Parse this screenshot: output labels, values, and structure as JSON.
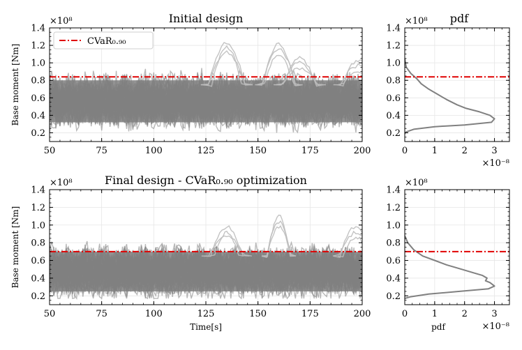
{
  "figure": {
    "panels": [
      {
        "id": "top-series",
        "title": "Initial design",
        "ylabel": "Base moment [Nm]",
        "exponent": "×10⁸",
        "xticks": [
          "50",
          "75",
          "100",
          "125",
          "150",
          "175",
          "200"
        ],
        "yticks": [
          "0.2",
          "0.4",
          "0.6",
          "0.8",
          "1.0",
          "1.2",
          "1.4"
        ]
      },
      {
        "id": "top-pdf",
        "title": "pdf",
        "exponent": "×10⁸",
        "xexponent": "×10⁻⁸",
        "xticks": [
          "0",
          "1",
          "2",
          "3"
        ],
        "yticks": [
          "0.2",
          "0.4",
          "0.6",
          "0.8",
          "1.0",
          "1.2",
          "1.4"
        ]
      },
      {
        "id": "bottom-series",
        "title": "Final design - CVaR₀.₉₀ optimization",
        "ylabel": "Base moment [Nm]",
        "xlabel": "Time[s]",
        "exponent": "×10⁸",
        "xticks": [
          "50",
          "75",
          "100",
          "125",
          "150",
          "175",
          "200"
        ],
        "yticks": [
          "0.2",
          "0.4",
          "0.6",
          "0.8",
          "1.0",
          "1.2",
          "1.4"
        ]
      },
      {
        "id": "bottom-pdf",
        "xlabel": "pdf",
        "exponent": "×10⁸",
        "xexponent": "×10⁻⁸",
        "xticks": [
          "0",
          "1",
          "2",
          "3"
        ],
        "yticks": [
          "0.2",
          "0.4",
          "0.6",
          "0.8",
          "1.0",
          "1.2",
          "1.4"
        ]
      }
    ],
    "legend": {
      "label": "CVaR₀.₉₀"
    }
  },
  "chart_data": [
    {
      "type": "line",
      "title": "Initial design",
      "xlabel": "",
      "ylabel": "Base moment [Nm]",
      "xlim": [
        50,
        200
      ],
      "ylim": [
        0.1,
        1.4
      ],
      "y_scale": "1e8",
      "series": [
        {
          "name": "sample trajectories (band)",
          "y_low": 0.2,
          "y_core_low": 0.32,
          "y_core_high": 0.8,
          "y_high": 1.05
        },
        {
          "name": "CVaR₀.₉₀",
          "y": 0.84
        }
      ],
      "peaks": [
        {
          "x": 135,
          "y": 1.25
        },
        {
          "x": 160,
          "y": 1.23
        },
        {
          "x": 170,
          "y": 1.08
        },
        {
          "x": 198,
          "y": 1.05
        }
      ]
    },
    {
      "type": "line",
      "title": "pdf",
      "xlim": [
        0,
        3.5
      ],
      "ylim": [
        0.1,
        1.4
      ],
      "x_scale": "1e-8",
      "y_scale": "1e8",
      "series": [
        {
          "name": "pdf",
          "points": [
            [
              0.0,
              1.05
            ],
            [
              0.05,
              0.95
            ],
            [
              0.2,
              0.88
            ],
            [
              0.4,
              0.82
            ],
            [
              0.55,
              0.76
            ],
            [
              0.8,
              0.7
            ],
            [
              1.1,
              0.64
            ],
            [
              1.4,
              0.58
            ],
            [
              1.75,
              0.52
            ],
            [
              2.05,
              0.48
            ],
            [
              2.5,
              0.44
            ],
            [
              2.85,
              0.4
            ],
            [
              3.0,
              0.36
            ],
            [
              2.9,
              0.32
            ],
            [
              2.0,
              0.29
            ],
            [
              1.0,
              0.27
            ],
            [
              0.3,
              0.24
            ],
            [
              0.05,
              0.21
            ],
            [
              0.0,
              0.19
            ]
          ]
        },
        {
          "name": "CVaR₀.₉₀",
          "y": 0.84
        }
      ]
    },
    {
      "type": "line",
      "title": "Final design - CVaR₀.₉₀ optimization",
      "xlabel": "Time[s]",
      "ylabel": "Base moment [Nm]",
      "xlim": [
        50,
        200
      ],
      "ylim": [
        0.1,
        1.4
      ],
      "y_scale": "1e8",
      "series": [
        {
          "name": "sample trajectories (band)",
          "y_low": 0.17,
          "y_core_low": 0.25,
          "y_core_high": 0.7,
          "y_high": 0.85
        },
        {
          "name": "CVaR₀.₉₀",
          "y": 0.7
        }
      ],
      "peaks": [
        {
          "x": 135,
          "y": 1.0
        },
        {
          "x": 160,
          "y": 1.12
        },
        {
          "x": 197,
          "y": 1.0
        }
      ]
    },
    {
      "type": "line",
      "title": "",
      "xlabel": "pdf",
      "xlim": [
        0,
        3.5
      ],
      "ylim": [
        0.1,
        1.4
      ],
      "x_scale": "1e-8",
      "y_scale": "1e8",
      "series": [
        {
          "name": "pdf",
          "points": [
            [
              0.0,
              0.88
            ],
            [
              0.1,
              0.8
            ],
            [
              0.3,
              0.72
            ],
            [
              0.6,
              0.65
            ],
            [
              1.0,
              0.6
            ],
            [
              1.4,
              0.55
            ],
            [
              1.9,
              0.5
            ],
            [
              2.3,
              0.46
            ],
            [
              2.6,
              0.43
            ],
            [
              2.75,
              0.4
            ],
            [
              2.7,
              0.37
            ],
            [
              2.85,
              0.35
            ],
            [
              3.0,
              0.31
            ],
            [
              2.8,
              0.28
            ],
            [
              1.8,
              0.25
            ],
            [
              0.8,
              0.22
            ],
            [
              0.2,
              0.19
            ],
            [
              0.0,
              0.17
            ]
          ]
        },
        {
          "name": "CVaR₀.₉₀",
          "y": 0.7
        }
      ]
    }
  ]
}
